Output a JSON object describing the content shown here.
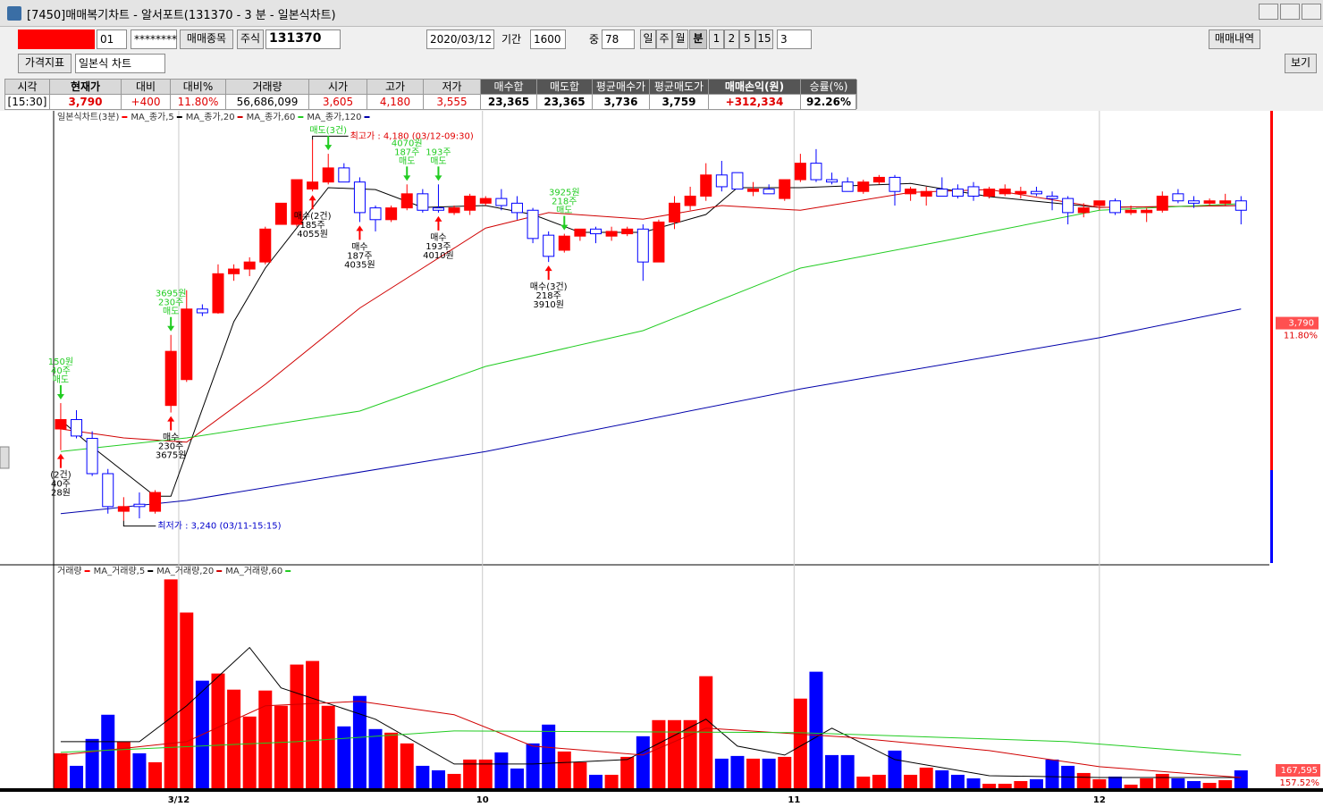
{
  "window": {
    "title": "[7450]매매복기차트 - 알서포트(131370 - 3 분 - 일본식차트)"
  },
  "toolbar": {
    "account": "01",
    "password": "********",
    "button_stock": "매매종목",
    "market": "주식",
    "code": "131370",
    "date": "2020/03/12",
    "period_label": "기간",
    "period": "1600",
    "mid_label": "중",
    "mid": "78",
    "units": [
      "일",
      "주",
      "월",
      "분",
      "1",
      "2",
      "5",
      "15"
    ],
    "interval": "3",
    "history": "매매내역",
    "indicator": "가격지표",
    "chart_kind": "일본식 차트",
    "view": "보기"
  },
  "info_table": {
    "headers": [
      "시각",
      "현재가",
      "대비",
      "대비%",
      "거래량",
      "시가",
      "고가",
      "저가",
      "매수합",
      "매도합",
      "평균매수가",
      "평균매도가",
      "매매손익(원)",
      "승률(%)"
    ],
    "values": [
      "[15:30]",
      "3,790",
      "+400",
      "11.80%",
      "56,686,099",
      "3,605",
      "4,180",
      "3,555",
      "23,365",
      "23,365",
      "3,736",
      "3,759",
      "+312,334",
      "92.26%"
    ]
  },
  "chart_data": [
    {
      "type": "candlestick",
      "title": "일본식차트(3분)",
      "up_color": "#ff0000",
      "down_color": "#0000ff",
      "xlim": [
        -0.45,
        76.8
      ],
      "ylim": [
        3280,
        4230
      ],
      "open": [
        3565,
        3585,
        3545,
        3470,
        3390,
        3405,
        3390,
        3615,
        3670,
        3820,
        3812,
        3895,
        3905,
        3920,
        4000,
        4000,
        4075,
        4090,
        4120,
        4090,
        4035,
        4010,
        4035,
        4065,
        4035,
        4025,
        4030,
        4045,
        4055,
        4045,
        4030,
        3977,
        3945,
        3975,
        3990,
        3975,
        3980,
        3990,
        3920,
        4005,
        4040,
        4060,
        4105,
        4110,
        4070,
        4075,
        4055,
        4095,
        4130,
        4095,
        4090,
        4070,
        4090,
        4100,
        4065,
        4060,
        4075,
        4075,
        4080,
        4060,
        4065,
        4065,
        4070,
        4060,
        4055,
        4025,
        4040,
        4050,
        4025,
        4025,
        4030,
        4065,
        4050,
        4045,
        4045,
        4050
      ],
      "high": [
        3620,
        3605,
        3560,
        3480,
        3420,
        3430,
        3435,
        3765,
        3860,
        3830,
        3915,
        3915,
        3930,
        3995,
        4045,
        4095,
        4180,
        4150,
        4130,
        4100,
        4040,
        4040,
        4085,
        4075,
        4085,
        4040,
        4065,
        4060,
        4075,
        4060,
        4035,
        3985,
        3980,
        3990,
        3995,
        3995,
        3995,
        4000,
        4010,
        4060,
        4080,
        4130,
        4135,
        4110,
        4090,
        4085,
        4095,
        4150,
        4160,
        4110,
        4100,
        4095,
        4105,
        4105,
        4080,
        4080,
        4100,
        4085,
        4090,
        4080,
        4085,
        4080,
        4080,
        4070,
        4060,
        4045,
        4050,
        4055,
        4040,
        4035,
        4070,
        4075,
        4060,
        4055,
        4065,
        4060
      ],
      "low": [
        3520,
        3545,
        3465,
        3385,
        3370,
        3375,
        3385,
        3600,
        3665,
        3805,
        3810,
        3880,
        3890,
        3915,
        4000,
        3995,
        4070,
        4085,
        4090,
        4005,
        3985,
        4005,
        4030,
        4025,
        4025,
        4020,
        4020,
        4040,
        4030,
        4010,
        3960,
        3920,
        3940,
        3965,
        3960,
        3965,
        3975,
        3880,
        3920,
        3990,
        4030,
        4050,
        4070,
        4075,
        4060,
        4065,
        4050,
        4090,
        4090,
        4085,
        4070,
        4065,
        4085,
        4040,
        4050,
        4040,
        4060,
        4055,
        4050,
        4055,
        4060,
        4055,
        4060,
        4030,
        4000,
        4015,
        4030,
        4020,
        4020,
        4005,
        4025,
        4045,
        4035,
        4040,
        4040,
        4000
      ],
      "close": [
        3585,
        3550,
        3470,
        3400,
        3400,
        3400,
        3430,
        3730,
        3820,
        3812,
        3895,
        3905,
        3920,
        3990,
        4045,
        4095,
        4090,
        4120,
        4090,
        4025,
        4010,
        4035,
        4065,
        4030,
        4030,
        4035,
        4060,
        4055,
        4040,
        4025,
        3970,
        3932,
        3975,
        3990,
        3980,
        3985,
        3990,
        3920,
        4005,
        4045,
        4060,
        4105,
        4080,
        4075,
        4075,
        4065,
        4095,
        4130,
        4095,
        4090,
        4070,
        4090,
        4100,
        4070,
        4075,
        4070,
        4060,
        4060,
        4060,
        4075,
        4075,
        4070,
        4065,
        4055,
        4025,
        4035,
        4050,
        4025,
        4030,
        4030,
        4060,
        4050,
        4045,
        4050,
        4050,
        4030
      ],
      "series": [
        {
          "name": "MA_종가,5",
          "color": "#000000",
          "x": [
            0,
            2,
            6,
            7,
            11,
            13,
            17,
            20,
            23,
            27,
            30,
            33,
            37,
            41,
            43,
            47,
            54,
            59,
            66,
            75
          ],
          "values": [
            3584,
            3527,
            3422,
            3422,
            3793,
            3907,
            4078,
            4074,
            4036,
            4040,
            4021,
            3983,
            3983,
            4021,
            4078,
            4078,
            4087,
            4059,
            4036,
            4040
          ]
        },
        {
          "name": "MA_종가,20",
          "color": "#d00000",
          "x": [
            0,
            4,
            8,
            13,
            19,
            23,
            27,
            31,
            37,
            42,
            47,
            54,
            59,
            66,
            75
          ],
          "values": [
            3565,
            3546,
            3537,
            3660,
            3822,
            3907,
            3992,
            4025,
            4011,
            4040,
            4030,
            4068,
            4074,
            4036,
            4040
          ]
        },
        {
          "name": "MA_종가,60",
          "color": "#22cc22",
          "x": [
            0,
            8,
            19,
            27,
            37,
            47,
            56,
            66,
            75
          ],
          "values": [
            3517,
            3546,
            3603,
            3698,
            3774,
            3907,
            3964,
            4030,
            4044
          ]
        },
        {
          "name": "MA_종가,120",
          "color": "#0000aa",
          "x": [
            0,
            8,
            27,
            47,
            66,
            75
          ],
          "values": [
            3385,
            3413,
            3517,
            3650,
            3759,
            3820
          ]
        }
      ],
      "high_label": "최고가 : 4,180 (03/12-09:30)",
      "low_label": "최저가 : 3,240 (03/11-15:15)",
      "buy_color": "#ff0000",
      "sell_color": "#22cc22",
      "signals": [
        {
          "side": "sell",
          "lines": [
            "150원",
            "40주",
            "매도"
          ]
        },
        {
          "side": "buy",
          "lines": [
            "(2건)",
            "40주",
            "28원"
          ]
        },
        {
          "side": "sell",
          "lines": [
            "3695원",
            "230주",
            "매도"
          ]
        },
        {
          "side": "buy",
          "lines": [
            "매수",
            "230주",
            "3675원"
          ]
        },
        {
          "side": "sell",
          "lines": [
            "매도(3건)"
          ]
        },
        {
          "side": "buy",
          "lines": [
            "매수(2건)",
            "185주",
            "4055원"
          ]
        },
        {
          "side": "buy",
          "lines": [
            "매수",
            "187주",
            "4035원"
          ]
        },
        {
          "side": "sell",
          "lines": [
            "4070원",
            "187주",
            "매도"
          ]
        },
        {
          "side": "sell",
          "lines": [
            "193주",
            "매도"
          ]
        },
        {
          "side": "buy",
          "lines": [
            "매수",
            "193주",
            "4010원"
          ]
        },
        {
          "side": "sell",
          "lines": [
            "3925원",
            "218주",
            "매도"
          ]
        },
        {
          "side": "buy",
          "lines": [
            "매수(3건)",
            "218주",
            "3910원"
          ]
        }
      ],
      "last_price": {
        "value": 3790,
        "label": "3,790"
      },
      "change_label": "11.80%"
    },
    {
      "type": "bar",
      "title": "거래량",
      "up_color": "#ff0000",
      "down_color": "#0000ff",
      "ylim": [
        0,
        1960000
      ],
      "values": [
        327600,
        210000,
        462000,
        688800,
        436800,
        327600,
        243600,
        1957200,
        1646400,
        1008000,
        1075200,
        924000,
        672000,
        915600,
        772800,
        1159200,
        1192800,
        772800,
        579600,
        865200,
        554400,
        520800,
        420000,
        210000,
        168000,
        134400,
        268800,
        268800,
        336000,
        184800,
        420000,
        596400,
        344400,
        243600,
        126000,
        126000,
        294000,
        487200,
        638400,
        638400,
        638400,
        1050000,
        277200,
        302400,
        277200,
        277200,
        294000,
        840000,
        1092000,
        310800,
        310800,
        109200,
        126000,
        352800,
        126000,
        193200,
        168000,
        126000,
        92400,
        42000,
        42000,
        67200,
        84000,
        268800,
        210000,
        142800,
        84000,
        109200,
        33600,
        92400,
        134400,
        92400,
        67200,
        50400,
        75600,
        167595
      ],
      "series": [
        {
          "name": "MA_거래량,5",
          "color": "#000000",
          "x": [
            0,
            5,
            8,
            12,
            14,
            20,
            25,
            30,
            36,
            41,
            43,
            46,
            49,
            53,
            59,
            66,
            75
          ],
          "values": [
            436800,
            436800,
            772800,
            1318800,
            940800,
            646800,
            226800,
            226800,
            268800,
            646800,
            394800,
            310800,
            562800,
            268800,
            117600,
            100800,
            100800
          ]
        },
        {
          "name": "MA_거래량,20",
          "color": "#d00000",
          "x": [
            0,
            8,
            13,
            19,
            25,
            30,
            37,
            41,
            50,
            59,
            66,
            75
          ],
          "values": [
            310800,
            436800,
            772800,
            814800,
            688800,
            394800,
            310800,
            562800,
            478800,
            352800,
            201600,
            100800
          ]
        },
        {
          "name": "MA_거래량,60",
          "color": "#22cc22",
          "x": [
            0,
            15,
            25,
            47,
            64,
            75
          ],
          "values": [
            336000,
            436800,
            537600,
            520800,
            436800,
            310800
          ]
        }
      ],
      "xticks": [
        {
          "value": 7.5,
          "label": "3/12"
        },
        {
          "value": 26.8,
          "label": "10"
        },
        {
          "value": 46.6,
          "label": "11"
        },
        {
          "value": 66,
          "label": "12"
        }
      ],
      "last_volume": {
        "value": 167595,
        "label": "167,595"
      },
      "ratio_label": "157.52%"
    }
  ]
}
